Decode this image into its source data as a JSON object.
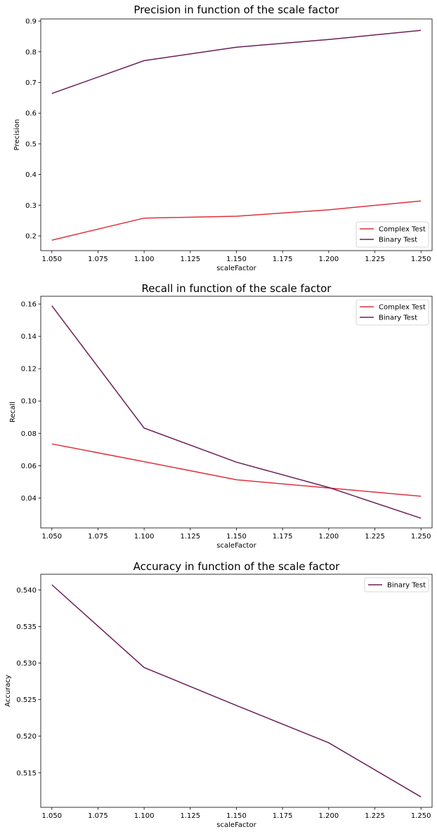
{
  "chart_data": [
    {
      "type": "line",
      "title": "Precision in function of the scale factor",
      "xlabel": "scaleFactor",
      "ylabel": "Precision",
      "x": [
        1.05,
        1.1,
        1.15,
        1.2,
        1.25
      ],
      "xlim": [
        1.044,
        1.256
      ],
      "ylim": [
        0.152,
        0.907
      ],
      "xticks": [
        "1.050",
        "1.075",
        "1.100",
        "1.125",
        "1.150",
        "1.175",
        "1.200",
        "1.225",
        "1.250"
      ],
      "xtick_values": [
        1.05,
        1.075,
        1.1,
        1.125,
        1.15,
        1.175,
        1.2,
        1.225,
        1.25
      ],
      "yticks": [
        "0.2",
        "0.3",
        "0.4",
        "0.5",
        "0.6",
        "0.7",
        "0.8",
        "0.9"
      ],
      "ytick_values": [
        0.2,
        0.3,
        0.4,
        0.5,
        0.6,
        0.7,
        0.8,
        0.9
      ],
      "grid": false,
      "legend_position": "bottom-right",
      "series": [
        {
          "name": "Complex Test",
          "color": "#e0313c",
          "values": [
            0.186,
            0.258,
            0.264,
            0.285,
            0.314
          ]
        },
        {
          "name": "Binary Test",
          "color": "#6b1f57",
          "values": [
            0.664,
            0.771,
            0.815,
            0.84,
            0.87
          ]
        }
      ]
    },
    {
      "type": "line",
      "title": "Recall in function of the scale factor",
      "xlabel": "scaleFactor",
      "ylabel": "Recall",
      "x": [
        1.05,
        1.1,
        1.15,
        1.2,
        1.25
      ],
      "xlim": [
        1.044,
        1.256
      ],
      "ylim": [
        0.0215,
        0.1648
      ],
      "xticks": [
        "1.050",
        "1.075",
        "1.100",
        "1.125",
        "1.150",
        "1.175",
        "1.200",
        "1.225",
        "1.250"
      ],
      "xtick_values": [
        1.05,
        1.075,
        1.1,
        1.125,
        1.15,
        1.175,
        1.2,
        1.225,
        1.25
      ],
      "yticks": [
        "0.04",
        "0.06",
        "0.08",
        "0.10",
        "0.12",
        "0.14",
        "0.16"
      ],
      "ytick_values": [
        0.04,
        0.06,
        0.08,
        0.1,
        0.12,
        0.14,
        0.16
      ],
      "grid": false,
      "legend_position": "top-right",
      "series": [
        {
          "name": "Complex Test",
          "color": "#e0313c",
          "values": [
            0.0735,
            0.0625,
            0.0513,
            0.0462,
            0.0411
          ]
        },
        {
          "name": "Binary Test",
          "color": "#6b1f57",
          "values": [
            0.1589,
            0.0833,
            0.0622,
            0.0465,
            0.0275
          ]
        }
      ]
    },
    {
      "type": "line",
      "title": "Accuracy in function of the scale factor",
      "xlabel": "scaleFactor",
      "ylabel": "Accuracy",
      "x": [
        1.05,
        1.1,
        1.15,
        1.2,
        1.25
      ],
      "xlim": [
        1.044,
        1.256
      ],
      "ylim": [
        0.51028,
        0.54214
      ],
      "xticks": [
        "1.050",
        "1.075",
        "1.100",
        "1.125",
        "1.150",
        "1.175",
        "1.200",
        "1.225",
        "1.250"
      ],
      "xtick_values": [
        1.05,
        1.075,
        1.1,
        1.125,
        1.15,
        1.175,
        1.2,
        1.225,
        1.25
      ],
      "yticks": [
        "0.515",
        "0.520",
        "0.525",
        "0.530",
        "0.535",
        "0.540"
      ],
      "ytick_values": [
        0.515,
        0.52,
        0.525,
        0.53,
        0.535,
        0.54
      ],
      "grid": false,
      "legend_position": "top-right",
      "series": [
        {
          "name": "Binary Test",
          "color": "#6b1f57",
          "values": [
            0.5407,
            0.5294,
            0.5242,
            0.5191,
            0.5117
          ]
        }
      ]
    }
  ]
}
